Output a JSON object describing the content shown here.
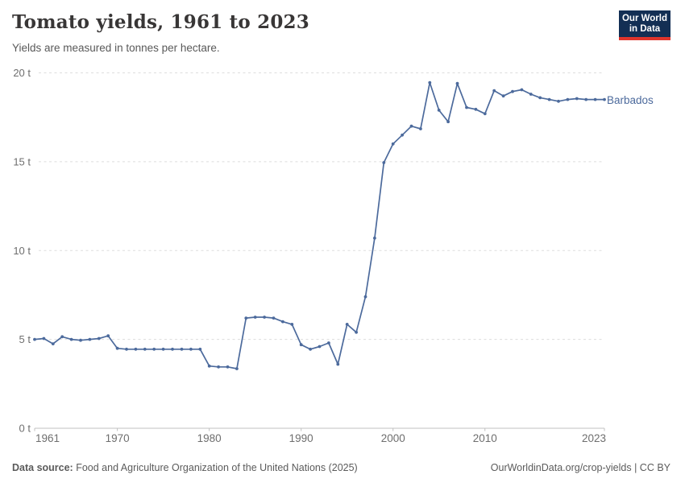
{
  "header": {
    "title": "Tomato yields, 1961 to 2023",
    "subtitle": "Yields are measured in tonnes per hectare.",
    "logo": {
      "line1": "Our World",
      "line2": "in Data"
    }
  },
  "chart_data": {
    "type": "line",
    "title": "Tomato yields, 1961 to 2023",
    "xlabel": "",
    "ylabel": "tonnes per hectare",
    "unit": "t",
    "xlim": [
      1961,
      2023
    ],
    "ylim": [
      0,
      20
    ],
    "grid": "horizontal-dashed",
    "legend_position": "end-of-line-label",
    "x_ticks": [
      1961,
      1970,
      1980,
      1990,
      2000,
      2010,
      2023
    ],
    "x_tick_labels": [
      "1961",
      "1970",
      "1980",
      "1990",
      "2000",
      "2010",
      "2023"
    ],
    "y_ticks": [
      0,
      5,
      10,
      15,
      20
    ],
    "y_tick_labels": [
      "0 t",
      "5 t",
      "10 t",
      "15 t",
      "20 t"
    ],
    "series": [
      {
        "name": "Barbados",
        "color": "#4c6a9c",
        "x": [
          1961,
          1962,
          1963,
          1964,
          1965,
          1966,
          1967,
          1968,
          1969,
          1970,
          1971,
          1972,
          1973,
          1974,
          1975,
          1976,
          1977,
          1978,
          1979,
          1980,
          1981,
          1982,
          1983,
          1984,
          1985,
          1986,
          1987,
          1988,
          1989,
          1990,
          1991,
          1992,
          1993,
          1994,
          1995,
          1996,
          1997,
          1998,
          1999,
          2000,
          2001,
          2002,
          2003,
          2004,
          2005,
          2006,
          2007,
          2008,
          2009,
          2010,
          2011,
          2012,
          2013,
          2014,
          2015,
          2016,
          2017,
          2018,
          2019,
          2020,
          2021,
          2022,
          2023
        ],
        "values": [
          5.0,
          5.05,
          4.75,
          5.15,
          5.0,
          4.95,
          5.0,
          5.05,
          5.2,
          4.5,
          4.45,
          4.45,
          4.45,
          4.45,
          4.45,
          4.45,
          4.45,
          4.45,
          4.45,
          3.5,
          3.45,
          3.45,
          3.35,
          6.2,
          6.25,
          6.25,
          6.2,
          6.0,
          5.85,
          4.7,
          4.45,
          4.6,
          4.8,
          3.6,
          5.85,
          5.4,
          7.4,
          10.7,
          14.95,
          16.0,
          16.5,
          17.0,
          16.85,
          19.45,
          17.9,
          17.25,
          19.4,
          18.05,
          17.95,
          17.7,
          19.0,
          18.7,
          18.95,
          19.05,
          18.8,
          18.6,
          18.5,
          18.4,
          18.5,
          18.55,
          18.5,
          18.5,
          18.5
        ]
      }
    ]
  },
  "footer": {
    "source_label": "Data source:",
    "source_text": " Food and Agriculture Organization of the United Nations (2025)",
    "link_text": "OurWorldinData.org/crop-yields | CC BY"
  },
  "colors": {
    "line": "#4c6a9c",
    "grid": "#dddddd",
    "axis": "#c0c0c0",
    "tick_label": "#6e6e6e",
    "title": "#383636",
    "subtitle": "#595959",
    "footer": "#5b5b5b",
    "logo_bg": "#132f54",
    "logo_red": "#e0352c"
  }
}
